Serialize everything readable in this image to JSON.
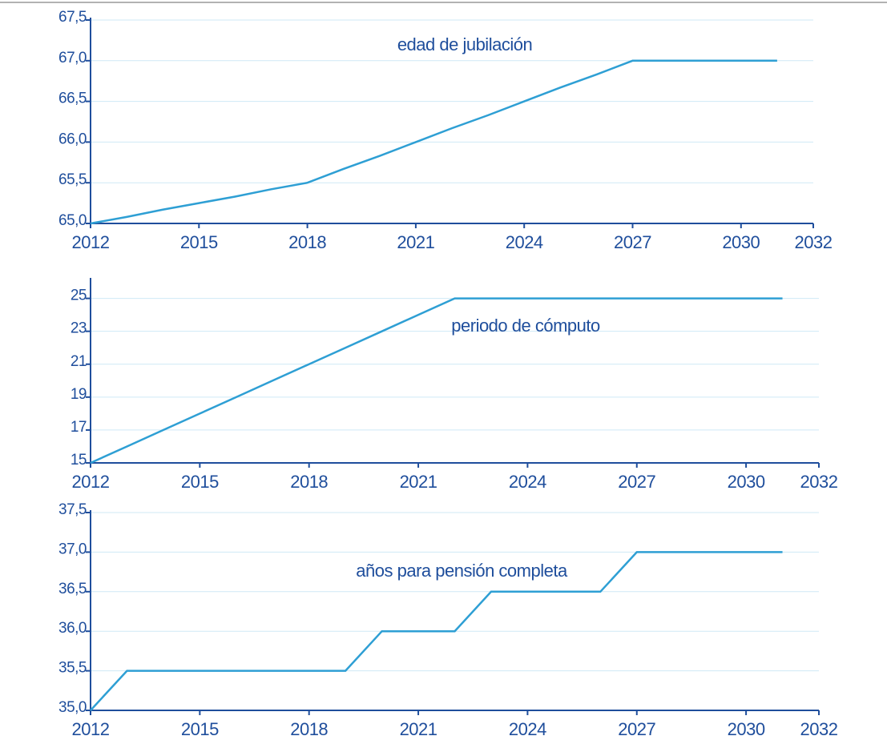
{
  "chart_data": [
    {
      "type": "line",
      "title": "edad de jubilación",
      "color": "#2e9fd4",
      "grid": true,
      "x": [
        2012,
        2013,
        2014,
        2015,
        2016,
        2017,
        2018,
        2019,
        2020,
        2021,
        2022,
        2023,
        2024,
        2025,
        2026,
        2027,
        2028,
        2029,
        2030,
        2031
      ],
      "values": [
        65,
        65.08,
        65.17,
        65.25,
        65.33,
        65.42,
        65.5,
        65.67,
        65.83,
        66,
        66.17,
        66.33,
        66.5,
        66.67,
        66.83,
        67,
        67,
        67,
        67,
        67
      ],
      "xlim": [
        2012,
        2032
      ],
      "xticks": [
        2012,
        2015,
        2018,
        2021,
        2024,
        2027,
        2030,
        2032
      ],
      "ylim": [
        65,
        67.5
      ],
      "yticks": [
        {
          "value": 65,
          "label": "65,0"
        },
        {
          "value": 65.5,
          "label": "65,5"
        },
        {
          "value": 66,
          "label": "66,0"
        },
        {
          "value": 66.5,
          "label": "66,5"
        },
        {
          "value": 67,
          "label": "67,0"
        },
        {
          "value": 67.5,
          "label": "67,5"
        }
      ]
    },
    {
      "type": "line",
      "title": "periodo de cómputo",
      "color": "#2e9fd4",
      "grid": true,
      "x": [
        2012,
        2013,
        2014,
        2015,
        2016,
        2017,
        2018,
        2019,
        2020,
        2021,
        2022,
        2023,
        2024,
        2025,
        2026,
        2027,
        2028,
        2029,
        2030,
        2031
      ],
      "values": [
        15,
        16,
        17,
        18,
        19,
        20,
        21,
        22,
        23,
        24,
        25,
        25,
        25,
        25,
        25,
        25,
        25,
        25,
        25,
        25
      ],
      "xlim": [
        2012,
        2032
      ],
      "xticks": [
        2012,
        2015,
        2018,
        2021,
        2024,
        2027,
        2030,
        2032
      ],
      "ylim": [
        15,
        26.1
      ],
      "yticks": [
        15,
        17,
        19,
        21,
        23,
        25
      ]
    },
    {
      "type": "line",
      "title": "años para pensión completa",
      "color": "#2e9fd4",
      "grid": true,
      "x": [
        2012,
        2013,
        2014,
        2015,
        2016,
        2017,
        2018,
        2019,
        2020,
        2021,
        2022,
        2023,
        2024,
        2025,
        2026,
        2027,
        2028,
        2029,
        2030,
        2031
      ],
      "values": [
        35,
        35.5,
        35.5,
        35.5,
        35.5,
        35.5,
        35.5,
        35.5,
        36,
        36,
        36,
        36.5,
        36.5,
        36.5,
        36.5,
        37,
        37,
        37,
        37,
        37
      ],
      "xlim": [
        2012,
        2032
      ],
      "xticks": [
        2012,
        2015,
        2018,
        2021,
        2024,
        2027,
        2030,
        2032
      ],
      "ylim": [
        35,
        37.5
      ],
      "yticks": [
        {
          "value": 35,
          "label": "35,0"
        },
        {
          "value": 35.5,
          "label": "35,5"
        },
        {
          "value": 36,
          "label": "36,0"
        },
        {
          "value": 36.5,
          "label": "36,5"
        },
        {
          "value": 37,
          "label": "37,0"
        },
        {
          "value": 37.5,
          "label": "37,5"
        }
      ]
    }
  ]
}
